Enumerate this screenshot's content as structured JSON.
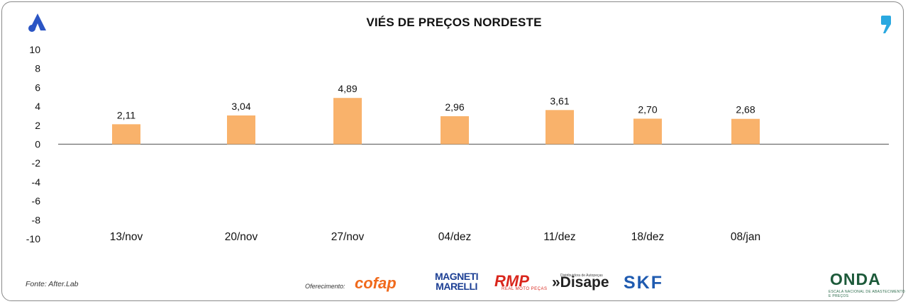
{
  "title": "VIÉS DE PREÇOS NORDESTE",
  "source": "Fonte: After.Lab",
  "offer_label": "Oferecimento:",
  "sponsors": {
    "cofap": "cofap",
    "magneti_top": "MAGNETI",
    "magneti_bottom": "MARELLI",
    "rmp": "RMP",
    "rmp_sub": "REAL MOTO PEÇAS",
    "disape": "»Disape",
    "disape_sub": "Distribuidora de Autopeças",
    "skf": "SKF",
    "onda": "ONDA",
    "onda_sub": "ESCALA NACIONAL DE ABASTECIMENTO E PREÇOS"
  },
  "colors": {
    "bar": "#f9b26b",
    "axis": "#6e6e6e",
    "brand": "#2b55c4"
  },
  "icons": {
    "left": "after-brand-icon",
    "right": "quote-icon"
  },
  "chart_data": {
    "type": "bar",
    "title": "VIÉS DE PREÇOS NORDESTE",
    "categories": [
      "13/nov",
      "20/nov",
      "27/nov",
      "04/dez",
      "11/dez",
      "18/dez",
      "08/jan"
    ],
    "values": [
      2.11,
      3.04,
      4.89,
      2.96,
      3.61,
      2.7,
      2.68
    ],
    "value_labels": [
      "2,11",
      "3,04",
      "4,89",
      "2,96",
      "3,61",
      "2,70",
      "2,68"
    ],
    "yticks": [
      "10",
      "8",
      "6",
      "4",
      "2",
      "0",
      "-2",
      "-4",
      "-6",
      "-8",
      "-10"
    ],
    "ylim": [
      -10,
      10
    ],
    "grid": false,
    "legend": "none"
  }
}
